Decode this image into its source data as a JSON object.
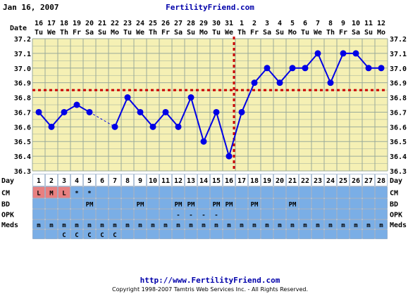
{
  "header": {
    "date": "Jan 16, 2007",
    "site": "FertilityFriend.com"
  },
  "footer": {
    "url": "http://www.FertilityFriend.com",
    "copyright": "Copyright 1998-2007 Tamtris Web Services Inc. - All Rights Reserved."
  },
  "row_labels": {
    "date": "Date",
    "day": "Day",
    "cm": "CM",
    "bd": "BD",
    "opk": "OPK",
    "meds": "Meds"
  },
  "colors": {
    "plot_bg": "#f5f0b4",
    "grid": "#9aaa9a",
    "line": "#0000e6",
    "coverline": "#cc0000",
    "row_bg": "#7aaee6",
    "day_bg": "#ffffff",
    "cm_highlight": "#e88080"
  },
  "chart_data": {
    "type": "line",
    "ylabel": "",
    "ylim": [
      36.3,
      37.2
    ],
    "yticks": [
      "37.2",
      "37.1",
      "37.0",
      "36.9",
      "36.8",
      "36.7",
      "36.6",
      "36.5",
      "36.4",
      "36.3"
    ],
    "dates": [
      "16",
      "17",
      "18",
      "19",
      "20",
      "21",
      "22",
      "23",
      "24",
      "25",
      "26",
      "27",
      "28",
      "29",
      "30",
      "31",
      "1",
      "2",
      "3",
      "4",
      "5",
      "6",
      "7",
      "8",
      "9",
      "10",
      "11",
      "12"
    ],
    "weekdays": [
      "Tu",
      "We",
      "Th",
      "Fr",
      "Sa",
      "Su",
      "Mo",
      "Tu",
      "We",
      "Th",
      "Fr",
      "Sa",
      "Su",
      "Mo",
      "Tu",
      "We",
      "Th",
      "Fr",
      "Sa",
      "Su",
      "Mo",
      "Tu",
      "We",
      "Th",
      "Fr",
      "Sa",
      "Su",
      "Mo"
    ],
    "days": [
      "1",
      "2",
      "3",
      "4",
      "5",
      "6",
      "7",
      "8",
      "9",
      "10",
      "11",
      "12",
      "13",
      "14",
      "15",
      "16",
      "17",
      "18",
      "19",
      "20",
      "21",
      "22",
      "23",
      "24",
      "25",
      "26",
      "27",
      "28"
    ],
    "temps": [
      36.7,
      36.6,
      36.7,
      36.75,
      36.7,
      null,
      36.6,
      36.8,
      36.7,
      36.6,
      36.7,
      36.6,
      36.8,
      36.5,
      36.7,
      36.4,
      36.7,
      36.9,
      37.0,
      36.9,
      37.0,
      37.0,
      37.1,
      36.9,
      37.1,
      37.1,
      37.0,
      37.0
    ],
    "coverline": 36.85,
    "ovulation_day": 17,
    "cm": [
      "L",
      "M",
      "L",
      "*",
      "*",
      "",
      "",
      "",
      "",
      "",
      "",
      "",
      "",
      "",
      "",
      "",
      "",
      "",
      "",
      "",
      "",
      "",
      "",
      "",
      "",
      "",
      "",
      ""
    ],
    "cm_highlight_days": [
      1,
      2,
      3
    ],
    "bd": [
      "",
      "",
      "",
      "",
      "PM",
      "",
      "",
      "",
      "PM",
      "",
      "",
      "PM",
      "PM",
      "",
      "PM",
      "PM",
      "",
      "PM",
      "",
      "",
      "PM",
      "",
      "",
      "",
      "",
      "",
      "",
      ""
    ],
    "opk": [
      "",
      "",
      "",
      "",
      "",
      "",
      "",
      "",
      "",
      "",
      "",
      "-",
      "-",
      "-",
      "-",
      "",
      "",
      "",
      "",
      "",
      "",
      "",
      "",
      "",
      "",
      "",
      "",
      ""
    ],
    "meds": [
      "m",
      "m",
      "m",
      "m",
      "m",
      "m",
      "m",
      "m",
      "m",
      "m",
      "m",
      "m",
      "m",
      "m",
      "m",
      "m",
      "m",
      "m",
      "m",
      "m",
      "m",
      "m",
      "m",
      "m",
      "m",
      "m",
      "m",
      "m"
    ],
    "meds2": [
      "",
      "",
      "C",
      "C",
      "C",
      "C",
      "C",
      "",
      "",
      "",
      "",
      "",
      "",
      "",
      "",
      "",
      "",
      "",
      "",
      "",
      "",
      "",
      "",
      "",
      "",
      "",
      "",
      ""
    ]
  }
}
